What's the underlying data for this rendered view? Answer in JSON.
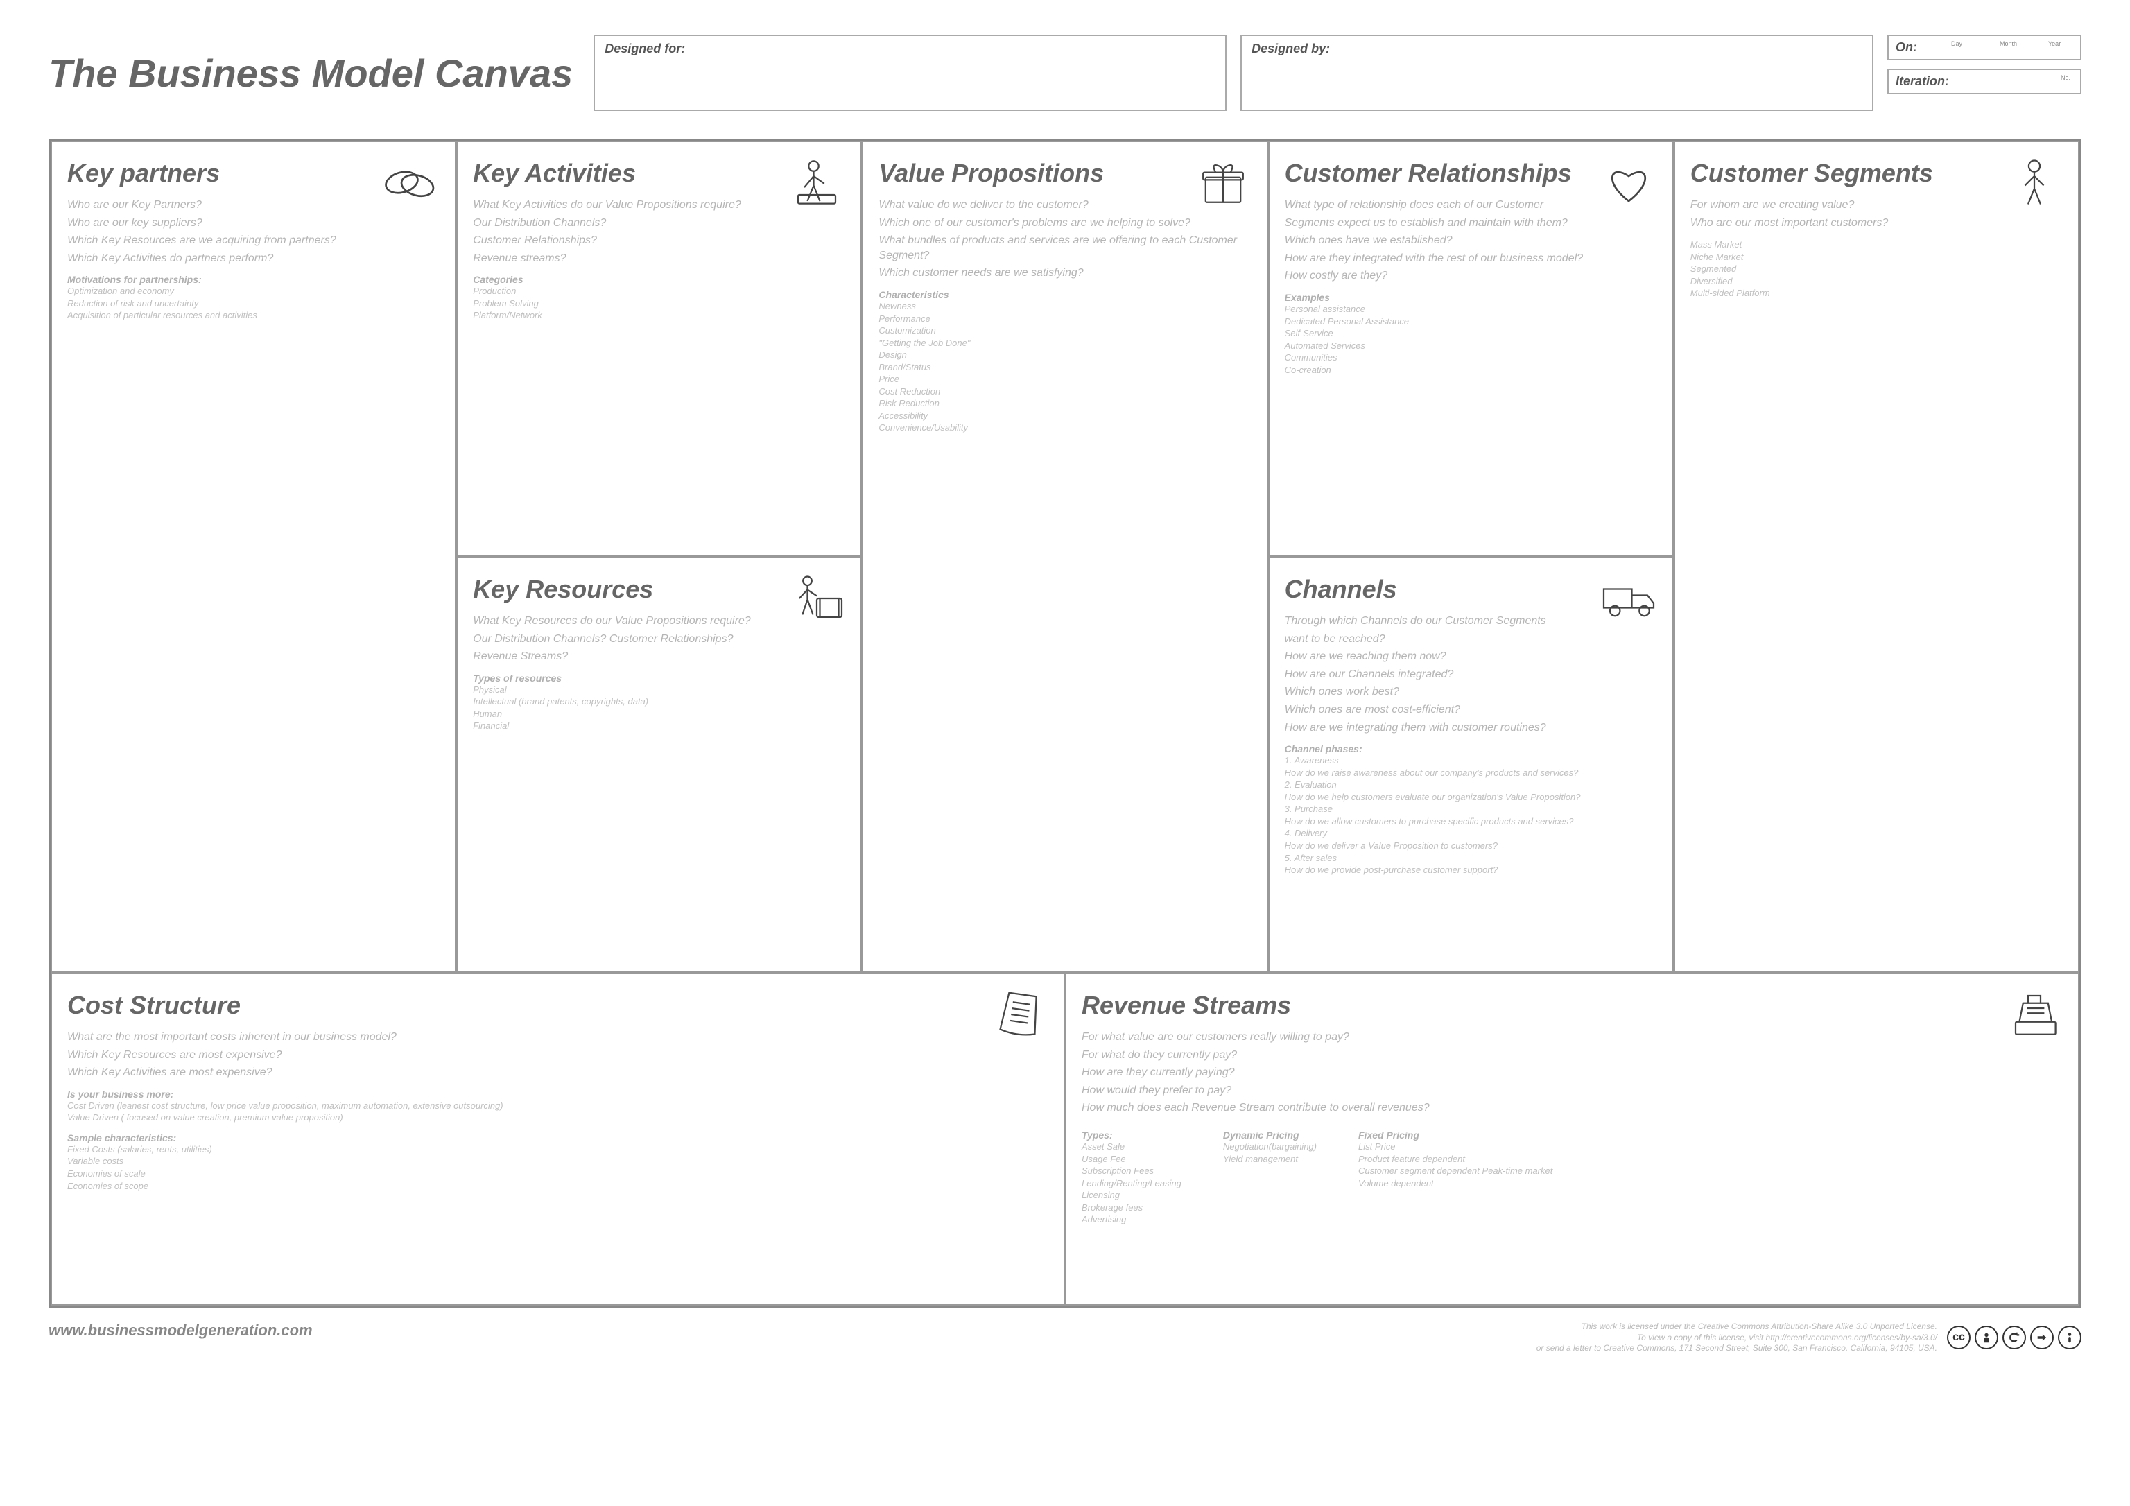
{
  "title": "The Business Model Canvas",
  "header": {
    "designed_for": "Designed for:",
    "designed_by": "Designed by:",
    "on": "On:",
    "on_day": "Day",
    "on_month": "Month",
    "on_year": "Year",
    "iteration": "Iteration:",
    "iteration_no": "No."
  },
  "cells": {
    "kp": {
      "title": "Key partners",
      "prompts": [
        "Who are our Key Partners?",
        "Who are our key suppliers?",
        "Which Key Resources are we acquiring from partners?",
        "Which Key Activities do partners perform?"
      ],
      "sub_heading": "Motivations for partnerships:",
      "sub_items": [
        "Optimization and economy",
        "Reduction of risk and uncertainty",
        "Acquisition of particular resources and activities"
      ]
    },
    "ka": {
      "title": "Key Activities",
      "prompts": [
        "What Key Activities do our Value Propositions require?",
        "Our Distribution Channels?",
        "Customer Relationships?",
        "Revenue streams?"
      ],
      "sub_heading": "Categories",
      "sub_items": [
        "Production",
        "Problem Solving",
        "Platform/Network"
      ]
    },
    "kr": {
      "title": "Key Resources",
      "prompts": [
        "What Key Resources do our Value Propositions require?",
        "Our Distribution Channels? Customer Relationships?",
        "Revenue Streams?"
      ],
      "sub_heading": "Types of resources",
      "sub_items": [
        "Physical",
        "Intellectual (brand patents, copyrights, data)",
        "Human",
        "Financial"
      ]
    },
    "vp": {
      "title": "Value Propositions",
      "prompts": [
        "What value do we deliver to the customer?",
        "Which one of our customer's problems are we helping to solve?",
        "What bundles of products and services are we offering to each Customer Segment?",
        "Which customer needs are we satisfying?"
      ],
      "sub_heading": "Characteristics",
      "sub_items": [
        "Newness",
        "Performance",
        "Customization",
        "\"Getting the Job Done\"",
        "Design",
        "Brand/Status",
        "Price",
        "Cost Reduction",
        "Risk Reduction",
        "Accessibility",
        "Convenience/Usability"
      ]
    },
    "cr": {
      "title": "Customer Relationships",
      "prompts": [
        "What type of relationship does each of our Customer",
        "Segments expect us to establish and maintain with them?",
        "Which ones have we established?",
        "How are they integrated with the rest of our business model?",
        "How costly are they?"
      ],
      "sub_heading": "Examples",
      "sub_items": [
        "Personal assistance",
        "Dedicated Personal Assistance",
        "Self-Service",
        "Automated Services",
        "Communities",
        "Co-creation"
      ]
    },
    "ch": {
      "title": "Channels",
      "prompts": [
        "Through which Channels do our Customer Segments",
        "want to be reached?",
        "How are we reaching them now?",
        "How are our Channels integrated?",
        "Which ones work best?",
        "Which ones are most cost-efficient?",
        "How are we integrating them with customer routines?"
      ],
      "sub_heading": "Channel phases:",
      "sub_items": [
        "1. Awareness",
        "   How do we raise awareness about our company's products and services?",
        "2. Evaluation",
        "   How do we help customers evaluate our organization's Value Proposition?",
        "3. Purchase",
        "   How do we allow customers to purchase specific products and services?",
        "4. Delivery",
        "   How do we deliver a Value Proposition to customers?",
        "5. After sales",
        "   How do we provide post-purchase customer support?"
      ]
    },
    "cs": {
      "title": "Customer Segments",
      "prompts": [
        "For whom are we creating value?",
        "Who are our most important customers?"
      ],
      "sub_heading": "",
      "sub_items": [
        "Mass Market",
        "Niche Market",
        "Segmented",
        "Diversified",
        "Multi-sided Platform"
      ]
    },
    "cost": {
      "title": "Cost Structure",
      "prompts": [
        "What are the most important costs inherent in our business model?",
        "Which Key Resources are most expensive?",
        "Which Key Activities are most expensive?"
      ],
      "sub1_heading": "Is your business more:",
      "sub1_items": [
        "Cost Driven (leanest cost structure, low price value proposition, maximum automation, extensive outsourcing)",
        "Value Driven ( focused on value creation, premium value proposition)"
      ],
      "sub2_heading": "Sample characteristics:",
      "sub2_items": [
        "Fixed Costs (salaries, rents, utilities)",
        "Variable costs",
        "Economies of scale",
        "Economies of scope"
      ]
    },
    "rev": {
      "title": "Revenue Streams",
      "prompts": [
        "For what value are our customers really willing to pay?",
        "For what do they currently pay?",
        "How are they currently paying?",
        "How would they prefer to pay?",
        "How much does each Revenue Stream contribute to overall revenues?"
      ],
      "types_label": "Types:",
      "types": [
        "Asset Sale",
        "Usage Fee",
        "Subscription Fees",
        "Lending/Renting/Leasing",
        "Licensing",
        "Brokerage fees",
        "Advertising"
      ],
      "dyn_label": "Dynamic Pricing",
      "dyn": [
        "Negotiation(bargaining)",
        "Yield management"
      ],
      "fixed_label": "Fixed Pricing",
      "fixed": [
        "List Price",
        "Product feature dependent",
        "Customer segment dependent Peak-time market",
        "Volume dependent"
      ]
    }
  },
  "footer": {
    "url": "www.businessmodelgeneration.com",
    "license": [
      "This work is licensed under the Creative Commons Attribution-Share Alike 3.0 Unported License.",
      "To view a copy of this license, visit http://creativecommons.org/licenses/by-sa/3.0/",
      "or send a letter to Creative Commons, 171 Second Street, Suite 300, San Francisco, California, 94105, USA."
    ]
  }
}
